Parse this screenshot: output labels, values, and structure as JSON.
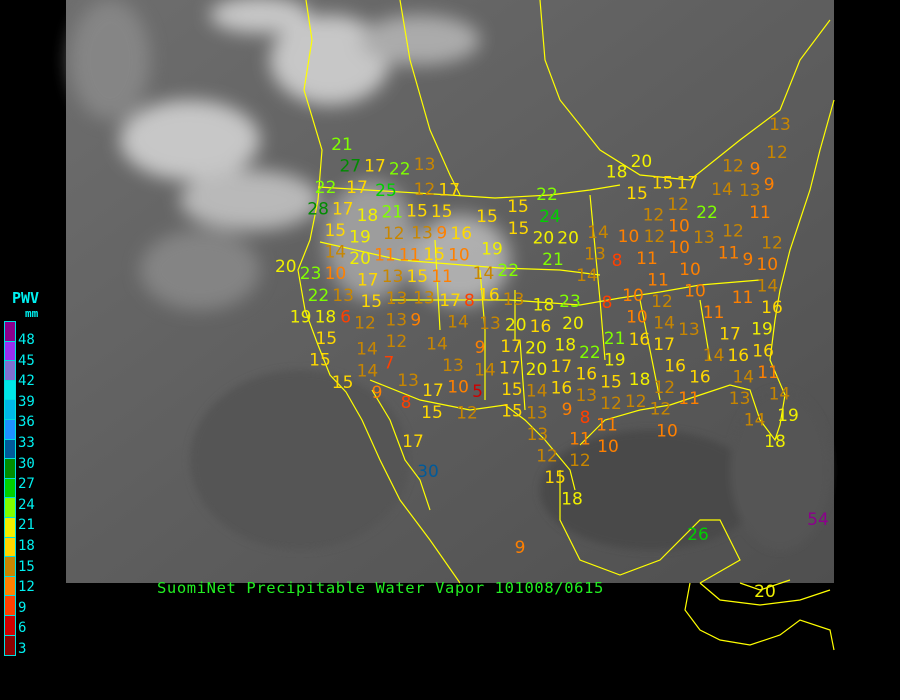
{
  "caption": "SuomiNet Precipitable Water Vapor 101008/0615",
  "legend": {
    "title": "PWV",
    "unit": "mm",
    "ticks": [
      "48",
      "45",
      "42",
      "39",
      "36",
      "33",
      "30",
      "27",
      "24",
      "21",
      "18",
      "15",
      "12",
      "9",
      "6",
      "3"
    ],
    "colors": [
      "#8c008c",
      "#9a30f0",
      "#8070d0",
      "#00e8e8",
      "#00b8e8",
      "#1e90ff",
      "#005a9a",
      "#008c00",
      "#00d000",
      "#80ff00",
      "#f0f000",
      "#ffd800",
      "#c88600",
      "#ff8000",
      "#ff4000",
      "#d00000",
      "#8c0000"
    ]
  },
  "map": {
    "background": "satellite infrared imagery, gray",
    "border_color": "#ffff00"
  },
  "stations": [
    13,
    21,
    27,
    17,
    22,
    22,
    17,
    25,
    12,
    17,
    28,
    17,
    21,
    15,
    15,
    15,
    15,
    15,
    18,
    12,
    13,
    16,
    9,
    19,
    14,
    20,
    11,
    11,
    15,
    10,
    19,
    22,
    20,
    23,
    10,
    17,
    13,
    15,
    11,
    14,
    22,
    13,
    13,
    13,
    16,
    18,
    15,
    13,
    17,
    8,
    13,
    19,
    6,
    12,
    12,
    9,
    14,
    13,
    15,
    15,
    14,
    7,
    14,
    15,
    9,
    13,
    17,
    8,
    15,
    14,
    9,
    13,
    10,
    14,
    5,
    12,
    17,
    30,
    20,
    17,
    20,
    15,
    13,
    18,
    20,
    12,
    9,
    13,
    9,
    14,
    17,
    22,
    24,
    15,
    15,
    15,
    12,
    12,
    22,
    11,
    10,
    20,
    20,
    21,
    14,
    10,
    12,
    13,
    12,
    10,
    11,
    9,
    12,
    10,
    13,
    14,
    8,
    10,
    10,
    11,
    11,
    12,
    11,
    14,
    10,
    8,
    23,
    16,
    14,
    10,
    16,
    13,
    11,
    19,
    16,
    17,
    18,
    20,
    18,
    21,
    22,
    16,
    17,
    14,
    16,
    16,
    16,
    17,
    20,
    17,
    16,
    16,
    19,
    15,
    14,
    13,
    15,
    18,
    12,
    11,
    13,
    11,
    14,
    14,
    19,
    14,
    18,
    13,
    9,
    8,
    12,
    12,
    12,
    10,
    11,
    10,
    12,
    11,
    12,
    15,
    18,
    13,
    12,
    26,
    9,
    54,
    20
  ]
}
